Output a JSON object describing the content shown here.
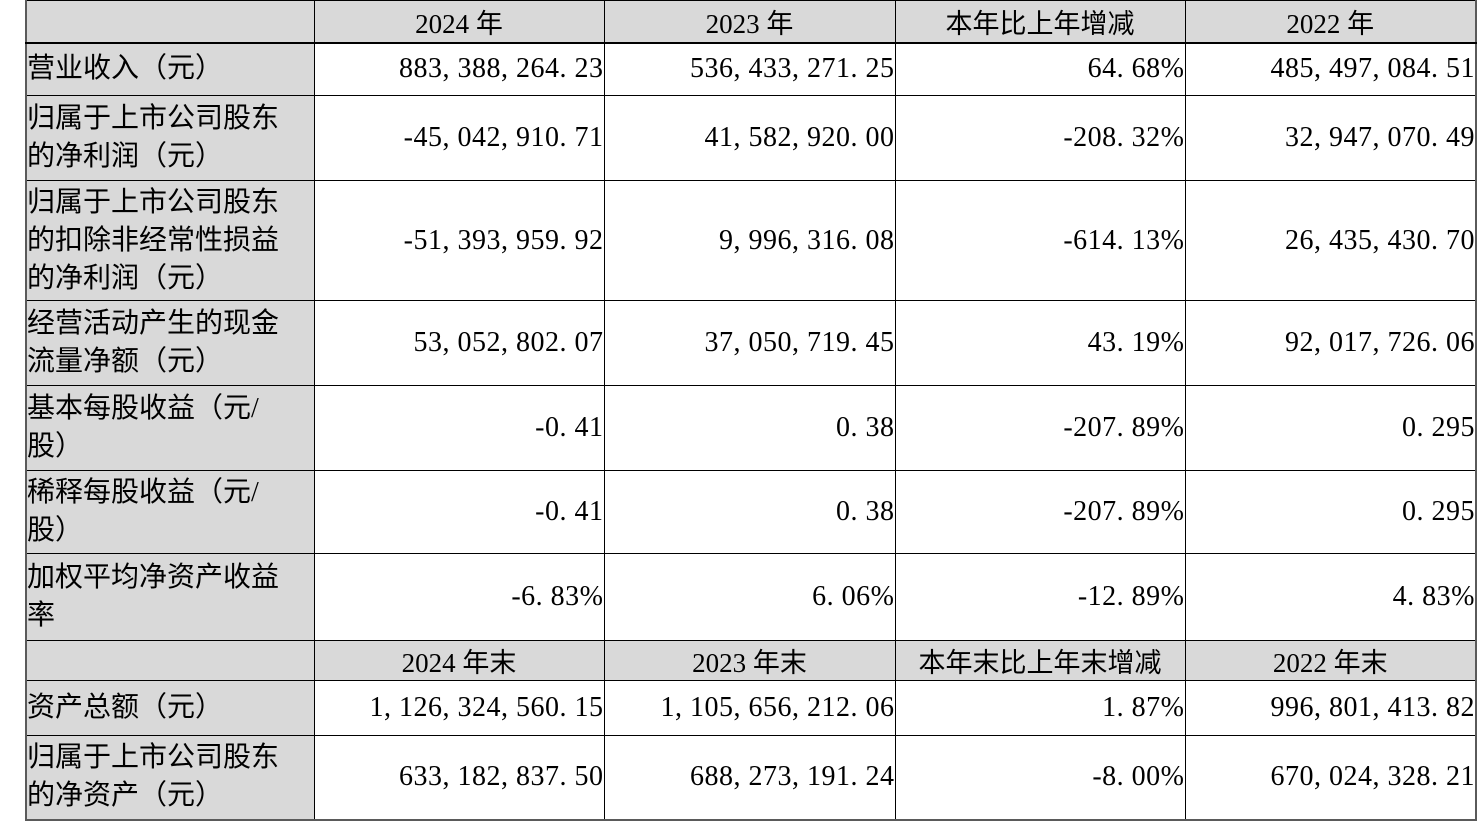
{
  "colors": {
    "cell_shading": "#d9d9d9",
    "grid_line": "#000000",
    "outer_border": "#5a5a5a",
    "text": "#000000",
    "page_background": "#ffffff"
  },
  "sections": [
    {
      "headers": [
        "2024 年",
        "2023 年",
        "本年比上年增减",
        "2022 年"
      ],
      "rows": [
        {
          "label": "营业收入（元）",
          "values": [
            "883, 388, 264. 23",
            "536, 433, 271. 25",
            "64. 68%",
            "485, 497, 084. 51"
          ]
        },
        {
          "label": "归属于上市公司股东\n的净利润（元）",
          "values": [
            "-45, 042, 910. 71",
            "41, 582, 920. 00",
            "-208. 32%",
            "32, 947, 070. 49"
          ]
        },
        {
          "label": "归属于上市公司股东\n的扣除非经常性损益\n的净利润（元）",
          "values": [
            "-51, 393, 959. 92",
            "9, 996, 316. 08",
            "-614. 13%",
            "26, 435, 430. 70"
          ]
        },
        {
          "label": "经营活动产生的现金\n流量净额（元）",
          "values": [
            "53, 052, 802. 07",
            "37, 050, 719. 45",
            "43. 19%",
            "92, 017, 726. 06"
          ]
        },
        {
          "label": "基本每股收益（元/\n股）",
          "values": [
            "-0. 41",
            "0. 38",
            "-207. 89%",
            "0. 295"
          ]
        },
        {
          "label": "稀释每股收益（元/\n股）",
          "values": [
            "-0. 41",
            "0. 38",
            "-207. 89%",
            "0. 295"
          ]
        },
        {
          "label": "加权平均净资产收益\n率",
          "values": [
            "-6. 83%",
            "6. 06%",
            "-12. 89%",
            "4. 83%"
          ]
        }
      ]
    },
    {
      "headers": [
        "2024 年末",
        "2023 年末",
        "本年末比上年末增减",
        "2022 年末"
      ],
      "rows": [
        {
          "label": "资产总额（元）",
          "values": [
            "1, 126, 324, 560. 15",
            "1, 105, 656, 212. 06",
            "1. 87%",
            "996, 801, 413. 82"
          ]
        },
        {
          "label": "归属于上市公司股东\n的净资产（元）",
          "values": [
            "633, 182, 837. 50",
            "688, 273, 191. 24",
            "-8. 00%",
            "670, 024, 328. 21"
          ]
        }
      ]
    }
  ]
}
